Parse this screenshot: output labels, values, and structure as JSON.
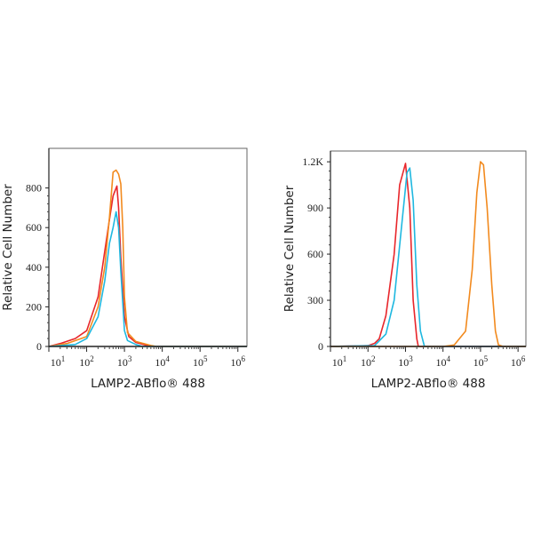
{
  "chart_data": [
    {
      "type": "line",
      "title": "",
      "xlabel": "LAMP2-ABflo® 488",
      "ylabel": "Relative Cell Number",
      "xscale": "log",
      "xlim": [
        10,
        1740000
      ],
      "ylim": [
        0,
        1000
      ],
      "xticks": [
        {
          "base": "10",
          "exp": "1",
          "value": 10
        },
        {
          "base": "10",
          "exp": "2",
          "value": 100
        },
        {
          "base": "10",
          "exp": "3",
          "value": 1000
        },
        {
          "base": "10",
          "exp": "4",
          "value": 10000
        },
        {
          "base": "10",
          "exp": "5",
          "value": 100000
        },
        {
          "base": "10",
          "exp": "6",
          "value": 1000000
        }
      ],
      "yticks": [
        {
          "label": "0",
          "value": 0
        },
        {
          "label": "200",
          "value": 200
        },
        {
          "label": "400",
          "value": 400
        },
        {
          "label": "600",
          "value": 600
        },
        {
          "label": "800",
          "value": 800
        }
      ],
      "grid": false,
      "series": [
        {
          "color": "#e8262b",
          "points": [
            [
              10,
              0
            ],
            [
              20,
              15
            ],
            [
              50,
              40
            ],
            [
              100,
              80
            ],
            [
              200,
              250
            ],
            [
              300,
              480
            ],
            [
              400,
              640
            ],
            [
              500,
              760
            ],
            [
              630,
              810
            ],
            [
              700,
              700
            ],
            [
              800,
              450
            ],
            [
              1000,
              150
            ],
            [
              1300,
              50
            ],
            [
              2000,
              20
            ],
            [
              4000,
              5
            ],
            [
              6000,
              0
            ],
            [
              1740000,
              0
            ]
          ]
        },
        {
          "color": "#f28a1e",
          "points": [
            [
              10,
              0
            ],
            [
              30,
              15
            ],
            [
              100,
              50
            ],
            [
              200,
              200
            ],
            [
              300,
              400
            ],
            [
              400,
              650
            ],
            [
              500,
              880
            ],
            [
              600,
              890
            ],
            [
              700,
              870
            ],
            [
              800,
              820
            ],
            [
              900,
              600
            ],
            [
              1000,
              250
            ],
            [
              1200,
              70
            ],
            [
              2000,
              25
            ],
            [
              5000,
              5
            ],
            [
              7000,
              0
            ],
            [
              1740000,
              0
            ]
          ]
        },
        {
          "color": "#1fb8e0",
          "points": [
            [
              10,
              0
            ],
            [
              50,
              10
            ],
            [
              100,
              40
            ],
            [
              200,
              150
            ],
            [
              300,
              330
            ],
            [
              400,
              520
            ],
            [
              500,
              600
            ],
            [
              600,
              680
            ],
            [
              700,
              600
            ],
            [
              800,
              380
            ],
            [
              1000,
              80
            ],
            [
              1200,
              30
            ],
            [
              2000,
              10
            ],
            [
              3000,
              0
            ],
            [
              1740000,
              0
            ]
          ]
        }
      ]
    },
    {
      "type": "line",
      "title": "",
      "xlabel": "LAMP2-ABflo® 488",
      "ylabel": "Relative Cell Number",
      "xscale": "log",
      "xlim": [
        10,
        1620000
      ],
      "ylim": [
        0,
        1270
      ],
      "xticks": [
        {
          "base": "10",
          "exp": "1",
          "value": 10
        },
        {
          "base": "10",
          "exp": "2",
          "value": 100
        },
        {
          "base": "10",
          "exp": "3",
          "value": 1000
        },
        {
          "base": "10",
          "exp": "4",
          "value": 10000
        },
        {
          "base": "10",
          "exp": "5",
          "value": 100000
        },
        {
          "base": "10",
          "exp": "6",
          "value": 1000000
        }
      ],
      "yticks": [
        {
          "label": "0",
          "value": 0
        },
        {
          "label": "300",
          "value": 300
        },
        {
          "label": "600",
          "value": 600
        },
        {
          "label": "900",
          "value": 900
        },
        {
          "label": "1.2K",
          "value": 1200
        }
      ],
      "grid": false,
      "series": [
        {
          "color": "#e8262b",
          "points": [
            [
              10,
              0
            ],
            [
              100,
              5
            ],
            [
              150,
              20
            ],
            [
              200,
              50
            ],
            [
              300,
              200
            ],
            [
              500,
              600
            ],
            [
              700,
              1050
            ],
            [
              1000,
              1190
            ],
            [
              1300,
              900
            ],
            [
              1600,
              300
            ],
            [
              2000,
              50
            ],
            [
              2200,
              0
            ],
            [
              1620000,
              0
            ]
          ]
        },
        {
          "color": "#1fb8e0",
          "points": [
            [
              10,
              0
            ],
            [
              150,
              5
            ],
            [
              300,
              80
            ],
            [
              500,
              300
            ],
            [
              800,
              800
            ],
            [
              1100,
              1130
            ],
            [
              1300,
              1160
            ],
            [
              1600,
              950
            ],
            [
              2000,
              400
            ],
            [
              2500,
              100
            ],
            [
              3200,
              0
            ],
            [
              1620000,
              0
            ]
          ]
        },
        {
          "color": "#f28a1e",
          "points": [
            [
              10,
              0
            ],
            [
              10000,
              0
            ],
            [
              20000,
              10
            ],
            [
              40000,
              100
            ],
            [
              60000,
              500
            ],
            [
              80000,
              1000
            ],
            [
              100000,
              1200
            ],
            [
              120000,
              1180
            ],
            [
              150000,
              900
            ],
            [
              200000,
              400
            ],
            [
              250000,
              100
            ],
            [
              300000,
              10
            ],
            [
              400000,
              0
            ],
            [
              1620000,
              0
            ]
          ]
        }
      ]
    }
  ]
}
